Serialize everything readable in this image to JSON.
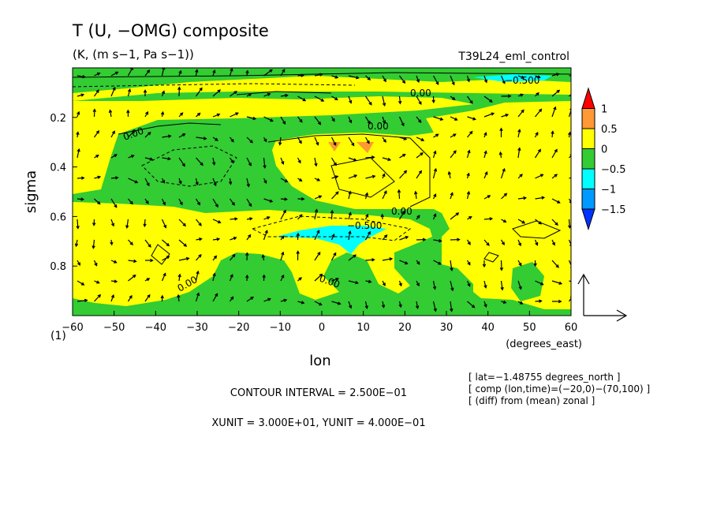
{
  "chart_data": {
    "type": "heatmap",
    "title": "T (U, −OMG) composite",
    "subtitle": "(K, (m s−1, Pa s−1))",
    "run_label": "T39L24_eml_control",
    "xlabel": "lon",
    "x_units": "(degrees_east)",
    "ylabel": "sigma",
    "y_corner_label": "(1)",
    "x_ticks": [
      "−60",
      "−50",
      "−40",
      "−30",
      "−20",
      "−10",
      "0",
      "10",
      "20",
      "30",
      "40",
      "50",
      "60"
    ],
    "x_tick_values": [
      -60,
      -50,
      -40,
      -30,
      -20,
      -10,
      0,
      10,
      20,
      30,
      40,
      50,
      60
    ],
    "y_ticks": [
      "0.2",
      "0.4",
      "0.6",
      "0.8"
    ],
    "y_tick_values": [
      0.2,
      0.4,
      0.6,
      0.8
    ],
    "xlim": [
      -60,
      60
    ],
    "ylim": [
      0.0,
      1.0
    ],
    "y_inverted": true,
    "colorbar": {
      "labels": [
        "1",
        "0.5",
        "0",
        "−0.5",
        "−1",
        "−1.5"
      ],
      "levels": [
        1,
        0.5,
        0,
        -0.5,
        -1,
        -1.5
      ],
      "colors": [
        "#ff0000",
        "#ff9933",
        "#ffff00",
        "#33cc33",
        "#00ffff",
        "#0099ff",
        "#0033ff"
      ]
    },
    "contour_labels": [
      "0.00",
      "0.00",
      "0.00",
      "0.00",
      "0.00",
      "−0.500",
      "0.00",
      "−0.500"
    ],
    "contour_interval_text": "CONTOUR INTERVAL = 2.500E−01",
    "unit_text": "XUNIT = 3.000E+01, YUNIT = 4.000E−01",
    "info_lines": [
      "[ lat=−1.48755 degrees_north ]",
      "[ comp (lon,time)=(−20,0)−(70,100) ]",
      "[ (diff) from (mean) zonal ]"
    ],
    "colors": {
      "positive_high": "#ff9933",
      "positive": "#ffff00",
      "negative": "#33cc33",
      "negative_strong": "#00ffff",
      "arrow": "#000000"
    }
  }
}
